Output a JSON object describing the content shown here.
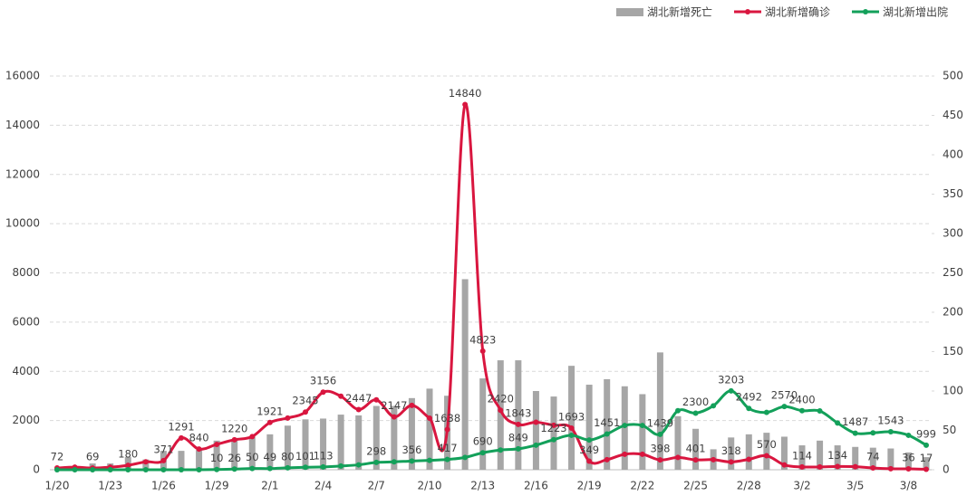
{
  "chart_data": {
    "type": "combo",
    "categories": [
      "1/20",
      null,
      null,
      "1/23",
      null,
      null,
      "1/26",
      null,
      null,
      "1/29",
      null,
      null,
      "2/1",
      null,
      null,
      "2/4",
      null,
      null,
      "2/7",
      null,
      null,
      "2/10",
      null,
      null,
      "2/13",
      null,
      null,
      "2/16",
      null,
      null,
      "2/19",
      null,
      null,
      "2/22",
      null,
      null,
      "2/25",
      null,
      null,
      "2/28",
      null,
      null,
      "3/2",
      null,
      null,
      "3/5",
      null,
      null,
      "3/8",
      null
    ],
    "series": [
      {
        "name": "湖北新增死亡",
        "kind": "bar",
        "axis": "y2",
        "color": "#a6a6a6",
        "values": [
          0,
          3,
          8,
          8,
          16,
          13,
          24,
          24,
          25,
          37,
          37,
          42,
          45,
          56,
          64,
          65,
          70,
          69,
          81,
          81,
          91,
          103,
          94,
          242,
          116,
          139,
          139,
          100,
          93,
          132,
          108,
          115,
          106,
          96,
          149,
          68,
          52,
          26,
          41,
          45,
          47,
          42,
          31,
          37,
          31,
          29,
          28,
          27,
          22,
          16
        ]
      },
      {
        "name": "湖北新增确诊",
        "kind": "line",
        "color": "#d9163f",
        "values": [
          72,
          105,
          69,
          105,
          180,
          323,
          371,
          1291,
          840,
          1032,
          1220,
          1347,
          1921,
          2103,
          2345,
          3156,
          2987,
          2447,
          2841,
          2147,
          2618,
          2097,
          1638,
          14840,
          4823,
          2420,
          1843,
          1933,
          1807,
          1693,
          349,
          411,
          631,
          630,
          398,
          499,
          401,
          409,
          318,
          423,
          570,
          196,
          114,
          115,
          134,
          126,
          74,
          41,
          36,
          17
        ]
      },
      {
        "name": "湖北新增出院",
        "kind": "line",
        "color": "#13a05a",
        "values": [
          0,
          0,
          0,
          0,
          0,
          0,
          0,
          0,
          0,
          10,
          26,
          50,
          49,
          80,
          101,
          113,
          150,
          200,
          298,
          320,
          356,
          380,
          417,
          500,
          690,
          800,
          849,
          1000,
          1223,
          1400,
          1209,
          1451,
          1800,
          1800,
          1439,
          2400,
          2300,
          2600,
          3203,
          2492,
          2330,
          2570,
          2400,
          2389,
          1900,
          1487,
          1500,
          1543,
          1400,
          999
        ]
      }
    ],
    "ylim": [
      0,
      16000
    ],
    "yticks": [
      0,
      2000,
      4000,
      6000,
      8000,
      10000,
      12000,
      14000,
      16000
    ],
    "y2lim": [
      0,
      500
    ],
    "y2ticks": [
      0,
      50,
      100,
      150,
      200,
      250,
      300,
      350,
      400,
      450,
      500
    ],
    "grid": true,
    "legend": "top-right"
  }
}
